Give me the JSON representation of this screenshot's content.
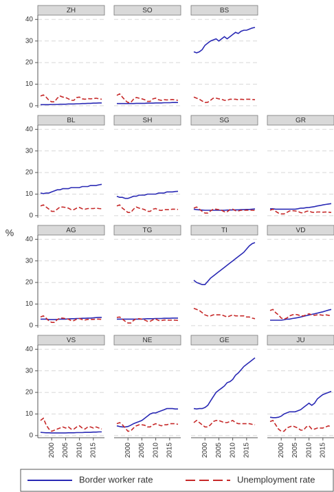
{
  "chart_data": {
    "type": "line",
    "ylabel": "%",
    "x": [
      1996,
      1997,
      1998,
      1999,
      2000,
      2001,
      2002,
      2003,
      2004,
      2005,
      2006,
      2007,
      2008,
      2009,
      2010,
      2011,
      2012,
      2013,
      2014,
      2015,
      2016,
      2017,
      2018
    ],
    "xlim": [
      1995,
      2019
    ],
    "xticks": [
      2000,
      2005,
      2010,
      2015
    ],
    "ylim": [
      -1,
      42
    ],
    "yticks": [
      0,
      10,
      20,
      30,
      40
    ],
    "grid": true,
    "series": [
      {
        "name": "Border worker rate",
        "color": "#2828b4",
        "dashed": false
      },
      {
        "name": "Unemployment rate",
        "color": "#c62828",
        "dashed": true
      }
    ],
    "panels": [
      {
        "title": "ZH",
        "values": [
          [
            0.5,
            0.5,
            0.5,
            0.5,
            0.6,
            0.6,
            0.6,
            0.7,
            0.7,
            0.7,
            0.8,
            0.8,
            0.8,
            0.9,
            0.9,
            1,
            1,
            1.1,
            1.1,
            1.2,
            1.2,
            1.3,
            1.3
          ],
          [
            4.5,
            5,
            4,
            2.5,
            1.8,
            1.8,
            3.5,
            4.5,
            4,
            3.8,
            3.2,
            2.5,
            2.5,
            3.8,
            4,
            3.2,
            3,
            3.3,
            3.2,
            3.3,
            3.5,
            3.2,
            3
          ]
        ]
      },
      {
        "title": "SO",
        "values": [
          [
            1,
            1,
            1,
            1,
            1,
            1,
            1,
            1.1,
            1.1,
            1.1,
            1.1,
            1.2,
            1.2,
            1.2,
            1.3,
            1.3,
            1.3,
            1.4,
            1.4,
            1.4,
            1.5,
            1.5,
            1.5
          ],
          [
            4.8,
            5.5,
            4,
            2.5,
            1.5,
            1.5,
            3,
            3.8,
            3.5,
            3.2,
            2.8,
            2,
            2,
            3.2,
            3.5,
            2.8,
            2.5,
            2.8,
            2.7,
            2.8,
            2.9,
            2.7,
            2.5
          ]
        ]
      },
      {
        "title": "BS",
        "values": [
          [
            25,
            24.5,
            25,
            26,
            28,
            29,
            30,
            30.5,
            31,
            30,
            31,
            32,
            31,
            32,
            33,
            34,
            33.5,
            34.5,
            35,
            35,
            35.5,
            36,
            36.3
          ],
          [
            4,
            3.5,
            3,
            2.2,
            1.5,
            1.6,
            2.5,
            3.5,
            3.5,
            3.2,
            3,
            2.5,
            2.5,
            3,
            3,
            3,
            2.8,
            3,
            2.9,
            3,
            3,
            2.9,
            2.8
          ]
        ]
      },
      {
        "title": "BL",
        "values": [
          [
            10.5,
            10.2,
            10.5,
            10.5,
            11,
            11.5,
            12,
            12,
            12.5,
            12.5,
            12.5,
            13,
            13,
            13,
            13,
            13.5,
            13.5,
            13.5,
            14,
            14,
            14,
            14.3,
            14.5
          ],
          [
            4.5,
            5,
            4,
            3,
            2,
            2,
            3,
            4,
            4,
            3.8,
            3.5,
            2.8,
            2.8,
            3.5,
            3.8,
            3.2,
            3,
            3.3,
            3.3,
            3.3,
            3.5,
            3.3,
            3.2
          ]
        ]
      },
      {
        "title": "SH",
        "values": [
          [
            9,
            8.5,
            8.5,
            8,
            8,
            8.5,
            9,
            9,
            9.5,
            9.5,
            9.5,
            10,
            10,
            10,
            10,
            10.5,
            10.5,
            10.5,
            11,
            11,
            11,
            11.2,
            11.3
          ],
          [
            4.5,
            5,
            3.5,
            2.5,
            1.5,
            1.5,
            3,
            4,
            3.5,
            3.2,
            2.8,
            2,
            2,
            3,
            3.3,
            2.6,
            2.4,
            2.8,
            2.8,
            2.8,
            3,
            3,
            2.9
          ]
        ]
      },
      {
        "title": "SG",
        "values": [
          [
            3,
            2.8,
            2.7,
            2.6,
            2.5,
            2.5,
            2.5,
            2.5,
            2.5,
            2.5,
            2.5,
            2.5,
            2.6,
            2.6,
            2.7,
            2.7,
            2.7,
            2.8,
            2.8,
            2.9,
            2.9,
            3,
            3.1
          ],
          [
            3.5,
            4,
            3,
            2,
            1.2,
            1.2,
            2.2,
            3,
            3,
            2.8,
            2.5,
            1.8,
            1.8,
            2.8,
            3,
            2.3,
            2.2,
            2.5,
            2.5,
            2.5,
            2.6,
            2.5,
            2.4
          ]
        ]
      },
      {
        "title": "GR",
        "values": [
          [
            3.2,
            3.2,
            3,
            3,
            3,
            3,
            3,
            3,
            3,
            3,
            3.2,
            3.5,
            3.5,
            3.7,
            3.8,
            4,
            4.2,
            4.5,
            4.7,
            5,
            5.2,
            5.4,
            5.6
          ],
          [
            2.5,
            3,
            2,
            1.2,
            0.8,
            0.8,
            1.5,
            2.2,
            2.3,
            2.2,
            2,
            1.4,
            1.3,
            2,
            2.2,
            1.6,
            1.5,
            1.7,
            1.7,
            1.6,
            1.7,
            1.6,
            1.5
          ]
        ]
      },
      {
        "title": "AG",
        "values": [
          [
            3,
            3,
            3,
            2.8,
            2.8,
            2.8,
            2.9,
            3,
            3,
            3,
            3.1,
            3.2,
            3.2,
            3.3,
            3.3,
            3.4,
            3.4,
            3.5,
            3.5,
            3.6,
            3.7,
            3.8,
            3.8
          ],
          [
            4,
            4.5,
            3.5,
            2.2,
            1.5,
            1.5,
            2.8,
            3.5,
            3.5,
            3.2,
            3,
            2.3,
            2.3,
            3,
            3.3,
            2.8,
            2.6,
            2.9,
            2.9,
            2.9,
            3,
            3,
            2.9
          ]
        ]
      },
      {
        "title": "TG",
        "values": [
          [
            3,
            3,
            3,
            3,
            3,
            3,
            3,
            3,
            3,
            3,
            3.1,
            3.2,
            3.2,
            3.2,
            3.3,
            3.3,
            3.3,
            3.4,
            3.4,
            3.4,
            3.5,
            3.5,
            3.5
          ],
          [
            3.8,
            4,
            3,
            2,
            1.2,
            1.2,
            2.4,
            3.2,
            3.2,
            3,
            2.6,
            2,
            2,
            2.7,
            3,
            2.4,
            2.3,
            2.6,
            2.6,
            2.5,
            2.6,
            2.5,
            2.4
          ]
        ]
      },
      {
        "title": "TI",
        "values": [
          [
            21,
            20,
            19.5,
            19,
            19,
            20.5,
            22,
            23,
            24,
            25,
            26,
            27,
            28,
            29,
            30,
            31,
            32,
            33,
            34,
            35.5,
            37,
            38,
            38.5
          ],
          [
            8,
            7.5,
            7,
            6,
            5,
            4.5,
            4.5,
            5,
            5,
            5,
            5,
            4.5,
            4,
            4.5,
            5,
            4.5,
            4.5,
            4.5,
            4.5,
            4,
            4,
            3.5,
            3.2
          ]
        ]
      },
      {
        "title": "VD",
        "values": [
          [
            2.5,
            2.5,
            2.5,
            2.5,
            2.5,
            2.7,
            3,
            3,
            3.3,
            3.5,
            3.7,
            4,
            4.3,
            4.6,
            4.9,
            5.2,
            5.5,
            5.8,
            6.1,
            6.4,
            6.8,
            7.2,
            7.5
          ],
          [
            7,
            7.5,
            6,
            5,
            3.5,
            3,
            3.5,
            4.5,
            5,
            5.2,
            5,
            4.5,
            4.5,
            5,
            5.5,
            5,
            4.8,
            5,
            5,
            4.8,
            5,
            4.8,
            4.5
          ]
        ]
      },
      {
        "title": "VS",
        "values": [
          [
            1.5,
            1.4,
            1.3,
            1.3,
            1.2,
            1.2,
            1.2,
            1.2,
            1.2,
            1.2,
            1.3,
            1.3,
            1.3,
            1.4,
            1.4,
            1.4,
            1.5,
            1.5,
            1.5,
            1.6,
            1.6,
            1.7,
            1.7
          ],
          [
            7,
            8,
            5,
            3,
            2,
            2.5,
            3,
            3.5,
            4,
            3.5,
            4,
            3,
            3,
            4,
            4.5,
            3.5,
            3,
            4,
            4,
            3.5,
            4,
            3.5,
            3
          ]
        ]
      },
      {
        "title": "NE",
        "values": [
          [
            4.5,
            4.2,
            4,
            4,
            4.2,
            4.8,
            5.5,
            6,
            6.5,
            7,
            8,
            9,
            10,
            10.5,
            10.5,
            11,
            11.5,
            12,
            12.5,
            12.5,
            12.5,
            12.3,
            12.3
          ],
          [
            5.5,
            6,
            5,
            3.5,
            2,
            2.2,
            3.5,
            4.5,
            5,
            5,
            4.8,
            4,
            4,
            5,
            5.5,
            5,
            4.5,
            5,
            5,
            5.5,
            5.5,
            5.5,
            5.2
          ]
        ]
      },
      {
        "title": "GE",
        "values": [
          [
            12.5,
            12.3,
            12.5,
            12.5,
            13,
            14,
            16,
            18,
            20,
            21,
            22,
            23,
            24.5,
            25,
            26,
            28,
            29,
            30.5,
            32,
            33,
            34,
            35,
            36
          ],
          [
            6,
            7,
            6,
            5,
            4,
            4,
            5,
            6.5,
            7,
            7,
            6.5,
            6,
            6,
            6.5,
            7,
            6,
            5.5,
            5.5,
            5.5,
            5.5,
            5.5,
            5.2,
            5
          ]
        ]
      },
      {
        "title": "JU",
        "values": [
          [
            8.5,
            8.3,
            8.3,
            8.5,
            9,
            10,
            10.5,
            11,
            11,
            11,
            11.5,
            12,
            13,
            14,
            15,
            14,
            15,
            17,
            18,
            19,
            19.5,
            20,
            20.5
          ],
          [
            6.5,
            7,
            5,
            3,
            2,
            2,
            3.5,
            4,
            4.5,
            4,
            3.5,
            2.5,
            2.5,
            4,
            4.5,
            3,
            3,
            3.5,
            3.5,
            3.5,
            4,
            4.5,
            4
          ]
        ]
      }
    ]
  }
}
